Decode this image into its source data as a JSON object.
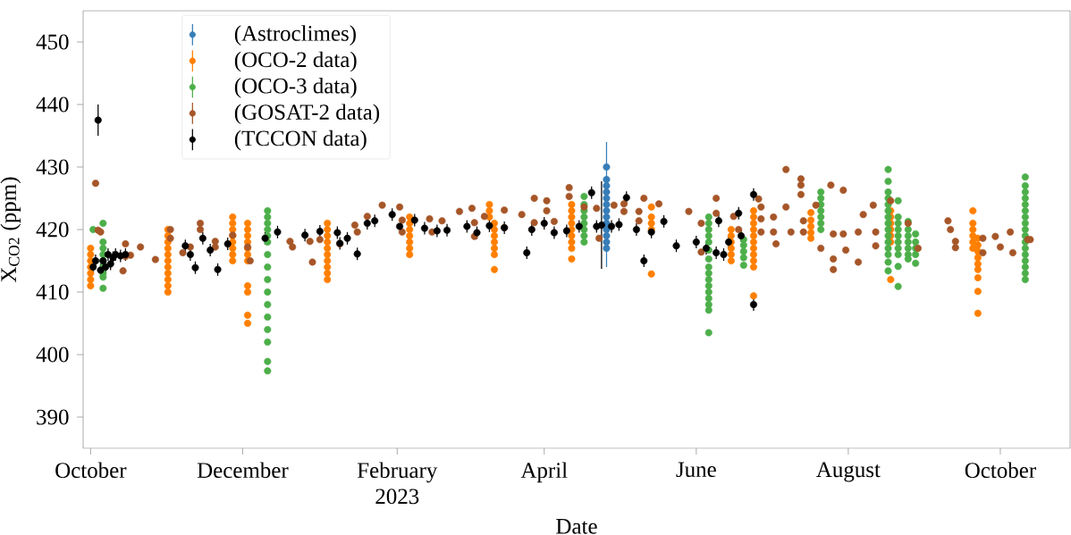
{
  "chart_data": {
    "type": "scatter",
    "xlabel": "Date",
    "ylabel": "X$_{CO2}$ (ppm)",
    "xlim": [
      "2022-09-28",
      "2023-10-29"
    ],
    "ylim": [
      385,
      455
    ],
    "xticks": [
      {
        "value": "2022-10-01",
        "label": "October"
      },
      {
        "value": "2022-12-01",
        "label": "December"
      },
      {
        "value": "2023-02-01",
        "label": "February 2023"
      },
      {
        "value": "2023-04-01",
        "label": "April"
      },
      {
        "value": "2023-06-01",
        "label": "June"
      },
      {
        "value": "2023-08-01",
        "label": "August"
      },
      {
        "value": "2023-10-01",
        "label": "October"
      }
    ],
    "yticks": [
      390,
      400,
      410,
      420,
      430,
      440,
      450
    ],
    "grid": false,
    "legend": "top left",
    "marker": "circle",
    "series": [
      {
        "name": "(Astroclimes)",
        "color": "#377eb8",
        "x": [
          "2023-04-26",
          "2023-04-26",
          "2023-04-26",
          "2023-04-26",
          "2023-04-26",
          "2023-04-26",
          "2023-04-26",
          "2023-04-26",
          "2023-04-26",
          "2023-04-26",
          "2023-04-26",
          "2023-04-26",
          "2023-04-26"
        ],
        "values": [
          430,
          428,
          427,
          426,
          425,
          424,
          423,
          422,
          421,
          420,
          419,
          418,
          417
        ],
        "errors": [
          4,
          null,
          null,
          null,
          null,
          null,
          null,
          null,
          null,
          null,
          null,
          null,
          3
        ]
      },
      {
        "name": "(OCO-2 data)",
        "color": "#ff7f00",
        "x": [
          "2022-10-01",
          "2022-10-01",
          "2022-10-01",
          "2022-10-01",
          "2022-10-01",
          "2022-10-01",
          "2022-10-01",
          "2022-11-01",
          "2022-11-01",
          "2022-11-01",
          "2022-11-01",
          "2022-11-01",
          "2022-11-01",
          "2022-11-01",
          "2022-11-01",
          "2022-11-01",
          "2022-11-01",
          "2022-11-01",
          "2022-11-27",
          "2022-11-27",
          "2022-11-27",
          "2022-11-27",
          "2022-11-27",
          "2022-11-27",
          "2022-11-27",
          "2022-11-27",
          "2022-12-03",
          "2022-12-03",
          "2022-12-03",
          "2022-12-03",
          "2022-12-03",
          "2022-12-03",
          "2022-12-03",
          "2022-12-03",
          "2022-12-03",
          "2022-12-03",
          "2022-12-03",
          "2023-01-04",
          "2023-01-04",
          "2023-01-04",
          "2023-01-04",
          "2023-01-04",
          "2023-01-04",
          "2023-01-04",
          "2023-01-04",
          "2023-01-04",
          "2023-01-04",
          "2023-02-06",
          "2023-02-06",
          "2023-02-06",
          "2023-02-06",
          "2023-02-06",
          "2023-02-06",
          "2023-02-06",
          "2023-03-10",
          "2023-03-10",
          "2023-03-10",
          "2023-03-12",
          "2023-03-12",
          "2023-03-12",
          "2023-03-12",
          "2023-03-12",
          "2023-03-12",
          "2023-03-12",
          "2023-04-12",
          "2023-04-12",
          "2023-04-12",
          "2023-04-12",
          "2023-04-12",
          "2023-04-12",
          "2023-04-12",
          "2023-04-12",
          "2023-04-12",
          "2023-05-14",
          "2023-05-14",
          "2023-05-14",
          "2023-05-14",
          "2023-05-14",
          "2023-06-15",
          "2023-06-15",
          "2023-06-15",
          "2023-06-15",
          "2023-06-15",
          "2023-06-15",
          "2023-06-24",
          "2023-06-24",
          "2023-06-24",
          "2023-06-24",
          "2023-06-24",
          "2023-06-24",
          "2023-06-24",
          "2023-06-24",
          "2023-06-24",
          "2023-06-24",
          "2023-06-24",
          "2023-07-17",
          "2023-07-17",
          "2023-07-17",
          "2023-07-17",
          "2023-07-17",
          "2023-08-18",
          "2023-08-18",
          "2023-08-18",
          "2023-08-18",
          "2023-08-18",
          "2023-08-18",
          "2023-08-18",
          "2023-09-20",
          "2023-09-20",
          "2023-09-20",
          "2023-09-20",
          "2023-09-20",
          "2023-09-20",
          "2023-09-22",
          "2023-09-22",
          "2023-09-22",
          "2023-09-22",
          "2023-09-22",
          "2023-09-22",
          "2023-09-22",
          "2023-09-22",
          "2023-09-22"
        ],
        "values": [
          417,
          416,
          415,
          414,
          413,
          412,
          411,
          420,
          419,
          418,
          417,
          416,
          415,
          414,
          413,
          412,
          411,
          410,
          422,
          421,
          420,
          419,
          418,
          417,
          416,
          415,
          421,
          420,
          419,
          418,
          417,
          416,
          415,
          411,
          410,
          406.3,
          405,
          421,
          420,
          419,
          418,
          417,
          416,
          415,
          414,
          413,
          412,
          422,
          421,
          420,
          419,
          418,
          417,
          416,
          424,
          423,
          422,
          421,
          420,
          419,
          418,
          417,
          416,
          413.6,
          424,
          423,
          422,
          421,
          420,
          419,
          418,
          417,
          415.3,
          423.6,
          422,
          421,
          420,
          412.9,
          420,
          419,
          418,
          417,
          416,
          415,
          423,
          422,
          421,
          420,
          419,
          418,
          417,
          416,
          415,
          414,
          409.4,
          422.7,
          421.5,
          420.5,
          419.5,
          418.6,
          423,
          422,
          421,
          420,
          419,
          418,
          412,
          423,
          421,
          420,
          419,
          418,
          417,
          418.6,
          417.5,
          416.5,
          415.5,
          414.5,
          413.6,
          412.3,
          410.1,
          406.6
        ]
      },
      {
        "name": "(OCO-3 data)",
        "color": "#4daf4a",
        "x": [
          "2022-10-02",
          "2022-10-06",
          "2022-10-06",
          "2022-10-06",
          "2022-10-06",
          "2022-10-06",
          "2022-10-06",
          "2022-10-06",
          "2022-10-06",
          "2022-10-06",
          "2022-12-11",
          "2022-12-11",
          "2022-12-11",
          "2022-12-11",
          "2022-12-11",
          "2022-12-11",
          "2022-12-11",
          "2022-12-11",
          "2022-12-11",
          "2022-12-11",
          "2022-12-11",
          "2022-12-11",
          "2022-12-11",
          "2022-12-11",
          "2022-12-11",
          "2022-12-11",
          "2023-04-17",
          "2023-04-17",
          "2023-04-17",
          "2023-04-17",
          "2023-04-17",
          "2023-04-17",
          "2023-04-17",
          "2023-04-17",
          "2023-06-06",
          "2023-06-06",
          "2023-06-06",
          "2023-06-06",
          "2023-06-06",
          "2023-06-06",
          "2023-06-06",
          "2023-06-06",
          "2023-06-06",
          "2023-06-06",
          "2023-06-06",
          "2023-06-06",
          "2023-06-06",
          "2023-06-06",
          "2023-06-06",
          "2023-06-06",
          "2023-06-20",
          "2023-06-20",
          "2023-06-20",
          "2023-06-20",
          "2023-06-20",
          "2023-07-21",
          "2023-07-21",
          "2023-07-21",
          "2023-07-21",
          "2023-07-21",
          "2023-07-21",
          "2023-07-21",
          "2023-08-17",
          "2023-08-17",
          "2023-08-17",
          "2023-08-17",
          "2023-08-17",
          "2023-08-17",
          "2023-08-17",
          "2023-08-17",
          "2023-08-17",
          "2023-08-17",
          "2023-08-17",
          "2023-08-17",
          "2023-08-17",
          "2023-08-17",
          "2023-08-17",
          "2023-08-21",
          "2023-08-21",
          "2023-08-21",
          "2023-08-21",
          "2023-08-21",
          "2023-08-21",
          "2023-08-21",
          "2023-08-21",
          "2023-08-21",
          "2023-08-21",
          "2023-08-25",
          "2023-08-25",
          "2023-08-25",
          "2023-08-25",
          "2023-08-25",
          "2023-08-25",
          "2023-08-25",
          "2023-08-28",
          "2023-08-28",
          "2023-08-28",
          "2023-08-28",
          "2023-08-28",
          "2023-10-11",
          "2023-10-11",
          "2023-10-11",
          "2023-10-11",
          "2023-10-11",
          "2023-10-11",
          "2023-10-11",
          "2023-10-11",
          "2023-10-11",
          "2023-10-11",
          "2023-10-11",
          "2023-10-11",
          "2023-10-11",
          "2023-10-11",
          "2023-10-11",
          "2023-10-11",
          "2023-10-11"
        ],
        "values": [
          420,
          421,
          418,
          417,
          416,
          415,
          414,
          413,
          412.4,
          410.6,
          423,
          422,
          421,
          420,
          419,
          418,
          416,
          414,
          412,
          410,
          408,
          406,
          404,
          402,
          398.9,
          397.4,
          425.3,
          424,
          423,
          422,
          421,
          420,
          419,
          418,
          422,
          421,
          420,
          419,
          418,
          416.7,
          415.3,
          414,
          413,
          412,
          411,
          410,
          409,
          408,
          407.1,
          403.5,
          418.4,
          417.5,
          416.5,
          415.5,
          414.3,
          426,
          425,
          424,
          423,
          422,
          421,
          420,
          429.6,
          427.7,
          426,
          425,
          424,
          423,
          422,
          421,
          420,
          419,
          418,
          417,
          416,
          414.8,
          413.4,
          424.6,
          422,
          421,
          420,
          419,
          418,
          417,
          416,
          414.1,
          410.9,
          421.3,
          420,
          419,
          418,
          417,
          416,
          415.3,
          419.3,
          418,
          417,
          416,
          414.6,
          428.4,
          427,
          426,
          425,
          424,
          423,
          422,
          421,
          420,
          419,
          418,
          417,
          416,
          415,
          414,
          413,
          412
        ]
      },
      {
        "name": "(GOSAT-2 data)",
        "color": "#a65628",
        "x": [
          "2022-10-03",
          "2022-10-04",
          "2022-10-05",
          "2022-10-14",
          "2022-10-15",
          "2022-10-15",
          "2022-10-17",
          "2022-10-21",
          "2022-10-27",
          "2022-11-02",
          "2022-11-02",
          "2022-11-07",
          "2022-11-10",
          "2022-11-14",
          "2022-11-14",
          "2022-11-20",
          "2022-11-20",
          "2022-11-27",
          "2022-12-03",
          "2022-12-04",
          "2022-12-20",
          "2022-12-21",
          "2022-12-28",
          "2022-12-29",
          "2023-01-01",
          "2023-01-09",
          "2023-01-15",
          "2023-01-16",
          "2023-01-20",
          "2023-01-26",
          "2023-02-02",
          "2023-02-03",
          "2023-02-03",
          "2023-02-14",
          "2023-02-15",
          "2023-02-19",
          "2023-02-26",
          "2023-03-03",
          "2023-03-04",
          "2023-03-04",
          "2023-03-08",
          "2023-03-16",
          "2023-03-16",
          "2023-03-23",
          "2023-03-28",
          "2023-03-28",
          "2023-04-02",
          "2023-04-02",
          "2023-04-05",
          "2023-04-11",
          "2023-04-11",
          "2023-04-17",
          "2023-04-22",
          "2023-04-23",
          "2023-04-29",
          "2023-05-03",
          "2023-05-03",
          "2023-05-09",
          "2023-05-09",
          "2023-05-11",
          "2023-05-17",
          "2023-05-29",
          "2023-06-03",
          "2023-06-03",
          "2023-06-09",
          "2023-06-09",
          "2023-06-16",
          "2023-06-18",
          "2023-06-26",
          "2023-06-27",
          "2023-06-27",
          "2023-06-27",
          "2023-07-02",
          "2023-07-02",
          "2023-07-03",
          "2023-07-07",
          "2023-07-07",
          "2023-07-09",
          "2023-07-13",
          "2023-07-13",
          "2023-07-13",
          "2023-07-14",
          "2023-07-14",
          "2023-07-19",
          "2023-07-21",
          "2023-07-25",
          "2023-07-26",
          "2023-07-26",
          "2023-07-26",
          "2023-07-30",
          "2023-07-30",
          "2023-07-31",
          "2023-08-05",
          "2023-08-05",
          "2023-08-07",
          "2023-08-11",
          "2023-08-12",
          "2023-08-12",
          "2023-08-18",
          "2023-08-25",
          "2023-08-29",
          "2023-09-10",
          "2023-09-11",
          "2023-09-13",
          "2023-09-13",
          "2023-09-24",
          "2023-09-24",
          "2023-09-29",
          "2023-10-01",
          "2023-10-05",
          "2023-10-06",
          "2023-10-12",
          "2023-10-13"
        ],
        "values": [
          427.4,
          419.9,
          419.6,
          413.4,
          417.7,
          415.7,
          415.9,
          417.2,
          415.2,
          420,
          418.6,
          416.3,
          417.2,
          421,
          420,
          418.1,
          417.2,
          419.1,
          417.2,
          415,
          418.1,
          417.2,
          418.1,
          414.8,
          418.4,
          417.7,
          420.7,
          419.6,
          422.1,
          423.9,
          423.6,
          421.5,
          419.6,
          421.7,
          419.6,
          421.4,
          422.9,
          423.4,
          421.1,
          418.9,
          422.1,
          423.1,
          420.3,
          422.4,
          425,
          421.1,
          424.6,
          423,
          421.3,
          426.7,
          425.3,
          423.6,
          423.4,
          418.6,
          423.9,
          424.1,
          422.9,
          422.9,
          421.4,
          425,
          424.1,
          422.9,
          421,
          416.4,
          425,
          422.6,
          422.1,
          420,
          424.9,
          423.6,
          421.7,
          419.6,
          422,
          419.6,
          417.7,
          429.6,
          423.6,
          419.6,
          428.1,
          427.1,
          425.6,
          421.4,
          419.6,
          423.9,
          417,
          427.1,
          419.3,
          415.3,
          413.6,
          426.3,
          419.3,
          416.7,
          419.6,
          414.8,
          422.4,
          423.9,
          419.6,
          417.4,
          424.6,
          421,
          417,
          421.4,
          420,
          418.1,
          417.1,
          418.6,
          416.3,
          418.9,
          417.2,
          419.6,
          416.3,
          418.4,
          418.4
        ]
      },
      {
        "name": "(TCCON data)",
        "color": "#000000",
        "x": [
          "2022-10-02",
          "2022-10-03",
          "2022-10-04",
          "2022-10-05",
          "2022-10-06",
          "2022-10-07",
          "2022-10-08",
          "2022-10-09",
          "2022-10-10",
          "2022-10-11",
          "2022-10-13",
          "2022-10-15",
          "2022-11-08",
          "2022-11-10",
          "2022-11-12",
          "2022-11-15",
          "2022-11-18",
          "2022-11-21",
          "2022-11-25",
          "2022-12-10",
          "2022-12-15",
          "2022-12-26",
          "2023-01-01",
          "2023-01-08",
          "2023-01-09",
          "2023-01-12",
          "2023-01-16",
          "2023-01-20",
          "2023-01-23",
          "2023-01-30",
          "2023-02-02",
          "2023-02-08",
          "2023-02-12",
          "2023-02-17",
          "2023-02-21",
          "2023-03-01",
          "2023-03-05",
          "2023-03-10",
          "2023-03-16",
          "2023-03-25",
          "2023-03-27",
          "2023-04-01",
          "2023-04-05",
          "2023-04-10",
          "2023-04-15",
          "2023-04-20",
          "2023-04-22",
          "2023-04-24",
          "2023-04-28",
          "2023-05-01",
          "2023-05-04",
          "2023-05-08",
          "2023-05-11",
          "2023-05-14",
          "2023-05-19",
          "2023-05-24",
          "2023-06-01",
          "2023-06-05",
          "2023-06-09",
          "2023-06-10",
          "2023-06-12",
          "2023-06-14",
          "2023-06-18",
          "2023-06-19",
          "2023-06-24",
          "2023-06-24"
        ],
        "values": [
          414,
          415,
          437.5,
          413.5,
          415,
          414,
          416,
          414.5,
          415.5,
          416,
          415.8,
          416,
          417.4,
          416,
          413.9,
          418.6,
          416.7,
          413.6,
          417.7,
          418.6,
          419.6,
          419.1,
          419.7,
          419.5,
          417.8,
          418.6,
          416.1,
          421,
          421.4,
          422.4,
          420.5,
          421.5,
          420.2,
          419.8,
          419.9,
          420.5,
          419.5,
          420.6,
          420.3,
          416.3,
          420,
          421,
          419.5,
          419.8,
          420.5,
          425.9,
          420.5,
          420.7,
          420.5,
          420.8,
          425.1,
          420,
          415,
          419.6,
          421.3,
          417.4,
          418,
          417,
          416.3,
          421.4,
          416,
          418,
          422.6,
          419,
          425.6,
          408
        ],
        "errors": [
          1,
          1,
          2.5,
          1,
          1,
          1,
          1,
          1,
          1,
          1,
          1,
          1,
          1,
          1,
          1,
          1,
          1,
          1,
          1,
          1,
          1,
          1,
          1,
          1,
          1,
          1,
          1,
          1,
          1,
          1,
          null,
          1,
          1,
          1,
          1,
          1,
          1,
          1,
          1,
          1,
          1,
          1,
          1,
          1,
          1,
          1,
          1,
          7,
          1,
          1,
          1,
          1,
          1,
          1,
          1,
          1,
          1,
          1,
          1,
          1,
          1,
          1,
          1,
          1,
          1,
          1
        ]
      }
    ]
  }
}
